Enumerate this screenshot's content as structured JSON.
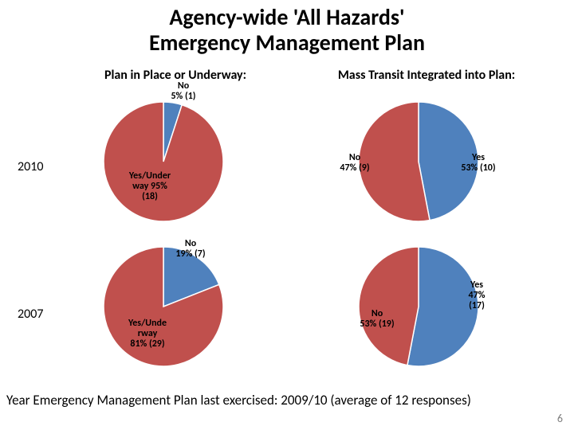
{
  "title": {
    "line1": "Agency-wide 'All Hazards'",
    "line2": "Emergency Management Plan",
    "fontsize": 28
  },
  "columns": {
    "left_header": "Plan in Place or Underway:",
    "right_header": "Mass Transit Integrated into Plan:",
    "header_fontsize": 16
  },
  "years": {
    "row1": "2010",
    "row2": "2007",
    "fontsize": 16
  },
  "colors": {
    "yes": "#c0504d",
    "no": "#4f81bd",
    "outline": "#ffffff",
    "background": "#ffffff",
    "text": "#000000",
    "pagenum": "#7f7f7f"
  },
  "charts": {
    "pie_diameter": 150,
    "label_fontsize": 12,
    "top_left": {
      "type": "pie",
      "slices": [
        {
          "key": "yes",
          "value": 95,
          "label_l1": "Yes/Under",
          "label_l2": "way 95%",
          "label_l3": "(18)"
        },
        {
          "key": "no",
          "value": 5,
          "label_l1": "No",
          "label_l2": "5% (1)",
          "label_l3": ""
        }
      ]
    },
    "top_right": {
      "type": "pie",
      "slices": [
        {
          "key": "yes",
          "value": 53,
          "label_l1": "Yes",
          "label_l2": "53% (10)",
          "label_l3": ""
        },
        {
          "key": "no",
          "value": 47,
          "label_l1": "No",
          "label_l2": "47% (9)",
          "label_l3": ""
        }
      ]
    },
    "bottom_left": {
      "type": "pie",
      "slices": [
        {
          "key": "yes",
          "value": 81,
          "label_l1": "Yes/Unde",
          "label_l2": "rway",
          "label_l3": "81% (29)"
        },
        {
          "key": "no",
          "value": 19,
          "label_l1": "No",
          "label_l2": "19% (7)",
          "label_l3": ""
        }
      ]
    },
    "bottom_right": {
      "type": "pie",
      "slices": [
        {
          "key": "yes",
          "value": 47,
          "label_l1": "Yes",
          "label_l2": "47%",
          "label_l3": "(17)"
        },
        {
          "key": "no",
          "value": 53,
          "label_l1": "No",
          "label_l2": "53% (19)",
          "label_l3": ""
        }
      ]
    }
  },
  "footnote": {
    "text": "Year Emergency Management Plan last exercised: 2009/10 (average of 12 responses)",
    "fontsize": 17
  },
  "pagenum": "6"
}
